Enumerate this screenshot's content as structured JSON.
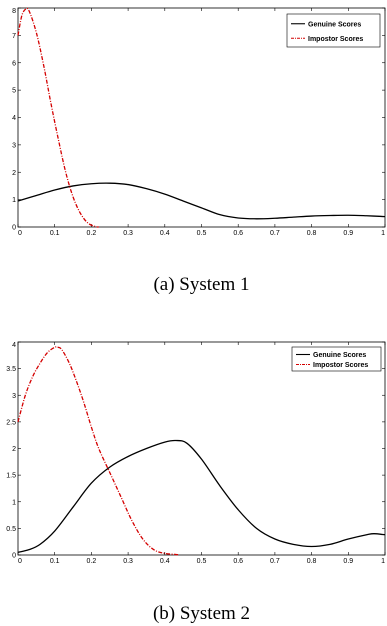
{
  "chart_data": [
    {
      "type": "line",
      "caption": "(a) System 1",
      "xlim": [
        0,
        1
      ],
      "ylim": [
        0,
        8
      ],
      "xticks": [
        "0",
        "0.1",
        "0.2",
        "0.3",
        "0.4",
        "0.5",
        "0.6",
        "0.7",
        "0.8",
        "0.9",
        "1"
      ],
      "yticks": [
        "0",
        "1",
        "2",
        "3",
        "4",
        "5",
        "6",
        "7",
        "8"
      ],
      "legend_position": "top-right",
      "series": [
        {
          "name": "Genuine Scores",
          "color": "#000000",
          "style": "solid",
          "x": [
            0,
            0.05,
            0.1,
            0.15,
            0.2,
            0.25,
            0.3,
            0.35,
            0.4,
            0.45,
            0.5,
            0.55,
            0.6,
            0.65,
            0.7,
            0.75,
            0.8,
            0.85,
            0.9,
            0.95,
            1
          ],
          "y": [
            0.95,
            1.15,
            1.35,
            1.5,
            1.58,
            1.6,
            1.55,
            1.4,
            1.2,
            0.95,
            0.7,
            0.45,
            0.33,
            0.3,
            0.32,
            0.36,
            0.4,
            0.42,
            0.43,
            0.41,
            0.38
          ]
        },
        {
          "name": "Impostor Scores",
          "color": "#d40000",
          "style": "dashdot",
          "x": [
            0,
            0.01,
            0.02,
            0.03,
            0.05,
            0.07,
            0.09,
            0.11,
            0.13,
            0.15,
            0.17,
            0.19,
            0.21,
            0.22
          ],
          "y": [
            7.0,
            7.7,
            7.95,
            7.9,
            7.1,
            5.9,
            4.5,
            3.2,
            2.0,
            1.1,
            0.5,
            0.15,
            0.02,
            0
          ]
        }
      ]
    },
    {
      "type": "line",
      "caption": "(b) System 2",
      "xlim": [
        0,
        1
      ],
      "ylim": [
        0,
        4
      ],
      "xticks": [
        "0",
        "0.1",
        "0.2",
        "0.3",
        "0.4",
        "0.5",
        "0.6",
        "0.7",
        "0.8",
        "0.9",
        "1"
      ],
      "yticks": [
        "0",
        "0.5",
        "1",
        "1.5",
        "2",
        "2.5",
        "3",
        "3.5",
        "4"
      ],
      "legend_position": "top-right",
      "series": [
        {
          "name": "Genuine Scores",
          "color": "#000000",
          "style": "solid",
          "x": [
            0,
            0.03,
            0.06,
            0.1,
            0.15,
            0.2,
            0.25,
            0.3,
            0.35,
            0.4,
            0.43,
            0.46,
            0.5,
            0.55,
            0.6,
            0.65,
            0.7,
            0.75,
            0.8,
            0.85,
            0.9,
            0.95,
            0.97,
            1
          ],
          "y": [
            0.05,
            0.1,
            0.2,
            0.45,
            0.9,
            1.35,
            1.65,
            1.85,
            2.0,
            2.12,
            2.15,
            2.1,
            1.8,
            1.3,
            0.85,
            0.5,
            0.3,
            0.2,
            0.16,
            0.2,
            0.3,
            0.38,
            0.4,
            0.38
          ]
        },
        {
          "name": "Impostor Scores",
          "color": "#d40000",
          "style": "dashdot",
          "x": [
            0,
            0.02,
            0.04,
            0.06,
            0.08,
            0.1,
            0.11,
            0.12,
            0.14,
            0.16,
            0.18,
            0.2,
            0.22,
            0.25,
            0.28,
            0.31,
            0.34,
            0.37,
            0.4,
            0.43,
            0.44
          ],
          "y": [
            2.5,
            3.0,
            3.35,
            3.6,
            3.8,
            3.9,
            3.9,
            3.85,
            3.6,
            3.25,
            2.85,
            2.4,
            2.0,
            1.55,
            1.1,
            0.65,
            0.3,
            0.1,
            0.03,
            0.01,
            0
          ]
        }
      ]
    }
  ]
}
